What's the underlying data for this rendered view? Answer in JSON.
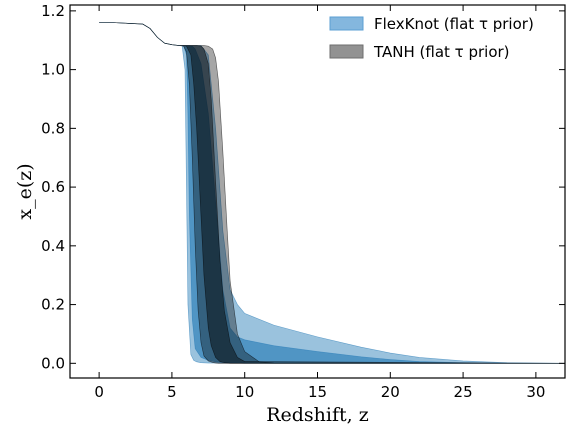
{
  "chart_data": {
    "type": "area",
    "title": "",
    "xlabel": "Redshift, z",
    "ylabel": "x_e(z)",
    "xlim": [
      -2,
      32
    ],
    "ylim": [
      -0.05,
      1.22
    ],
    "x_ticks": [
      0,
      5,
      10,
      15,
      20,
      25,
      30
    ],
    "y_ticks": [
      0.0,
      0.2,
      0.4,
      0.6,
      0.8,
      1.0,
      1.2
    ],
    "grid": false,
    "legend_position": "top-right",
    "legend": [
      {
        "label": "FlexKnot (flat τ prior)",
        "color": "#5b9fd3"
      },
      {
        "label": "TANH (flat τ prior)",
        "color": "#6e6e6e"
      }
    ],
    "series": [
      {
        "name": "FlexKnot (flat τ prior)",
        "color": "#1f77b4",
        "bands": [
          {
            "opacity": 0.45,
            "x": [
              0,
              1,
              3,
              3.5,
              4,
              4.5,
              5,
              5.5,
              5.7,
              5.9,
              6.0,
              6.1,
              6.3,
              6.5,
              6.7,
              7.0,
              7.5,
              8.0,
              8.5,
              9.0,
              9.5,
              10,
              12,
              15,
              18,
              20,
              22,
              25,
              28,
              30,
              32
            ],
            "lower": [
              1.16,
              1.16,
              1.155,
              1.14,
              1.11,
              1.09,
              1.085,
              1.082,
              1.082,
              1.0,
              0.6,
              0.2,
              0.03,
              0.01,
              0.005,
              0.002,
              0.001,
              0.001,
              0.001,
              0.001,
              0.001,
              0,
              0,
              0,
              0,
              0,
              0,
              0,
              0,
              0,
              0
            ],
            "upper": [
              1.16,
              1.16,
              1.155,
              1.14,
              1.11,
              1.09,
              1.085,
              1.082,
              1.082,
              1.082,
              1.082,
              1.082,
              1.082,
              1.082,
              1.082,
              1.082,
              1.05,
              0.8,
              0.45,
              0.25,
              0.2,
              0.17,
              0.13,
              0.09,
              0.055,
              0.035,
              0.02,
              0.008,
              0.002,
              0.001,
              0
            ]
          },
          {
            "opacity": 0.6,
            "x": [
              0,
              1,
              3,
              3.5,
              4,
              4.5,
              5,
              5.5,
              5.8,
              6.0,
              6.1,
              6.2,
              6.4,
              6.6,
              7.0,
              7.5,
              8.0,
              8.5,
              9.0,
              9.5,
              10,
              12,
              15,
              18,
              20,
              22,
              25,
              27,
              32
            ],
            "lower": [
              1.16,
              1.16,
              1.155,
              1.14,
              1.11,
              1.09,
              1.085,
              1.082,
              1.082,
              1.05,
              0.85,
              0.5,
              0.15,
              0.05,
              0.02,
              0.01,
              0.005,
              0.003,
              0.002,
              0.001,
              0.001,
              0,
              0,
              0,
              0,
              0,
              0,
              0,
              0
            ],
            "upper": [
              1.16,
              1.16,
              1.155,
              1.14,
              1.11,
              1.09,
              1.085,
              1.082,
              1.082,
              1.082,
              1.082,
              1.082,
              1.08,
              1.07,
              1.02,
              0.85,
              0.55,
              0.25,
              0.12,
              0.09,
              0.08,
              0.06,
              0.04,
              0.022,
              0.013,
              0.006,
              0.002,
              0.001,
              0
            ]
          }
        ]
      },
      {
        "name": "TANH (flat τ prior)",
        "color": "#000000",
        "bands": [
          {
            "opacity": 0.35,
            "x": [
              0,
              1,
              3,
              3.5,
              4,
              4.5,
              5,
              5.5,
              5.8,
              6.0,
              6.2,
              6.4,
              6.6,
              6.8,
              7.0,
              7.2,
              7.5,
              7.8,
              8.0,
              8.2,
              8.5,
              8.8,
              9.0,
              9.5,
              10,
              11,
              12,
              32
            ],
            "lower": [
              1.16,
              1.16,
              1.155,
              1.14,
              1.11,
              1.09,
              1.085,
              1.082,
              1.08,
              1.06,
              0.95,
              0.7,
              0.4,
              0.18,
              0.07,
              0.025,
              0.008,
              0.003,
              0.001,
              0,
              0,
              0,
              0,
              0,
              0,
              0,
              0,
              0
            ],
            "upper": [
              1.16,
              1.16,
              1.155,
              1.14,
              1.11,
              1.09,
              1.085,
              1.082,
              1.082,
              1.082,
              1.082,
              1.082,
              1.082,
              1.082,
              1.082,
              1.082,
              1.08,
              1.07,
              1.04,
              0.96,
              0.72,
              0.45,
              0.28,
              0.1,
              0.04,
              0.005,
              0.001,
              0
            ]
          },
          {
            "opacity": 0.45,
            "x": [
              0,
              1,
              3,
              3.5,
              4,
              4.5,
              5,
              5.5,
              6.0,
              6.3,
              6.5,
              6.7,
              7.0,
              7.2,
              7.5,
              7.7,
              8.0,
              8.3,
              8.6,
              9.0,
              9.5,
              10,
              32
            ],
            "lower": [
              1.16,
              1.16,
              1.155,
              1.14,
              1.11,
              1.09,
              1.085,
              1.082,
              1.08,
              1.05,
              0.95,
              0.8,
              0.5,
              0.3,
              0.12,
              0.06,
              0.02,
              0.006,
              0.002,
              0,
              0,
              0,
              0
            ],
            "upper": [
              1.16,
              1.16,
              1.155,
              1.14,
              1.11,
              1.09,
              1.085,
              1.082,
              1.082,
              1.082,
              1.082,
              1.082,
              1.08,
              1.07,
              1.02,
              0.9,
              0.62,
              0.35,
              0.18,
              0.07,
              0.02,
              0.006,
              0
            ]
          }
        ]
      }
    ]
  }
}
